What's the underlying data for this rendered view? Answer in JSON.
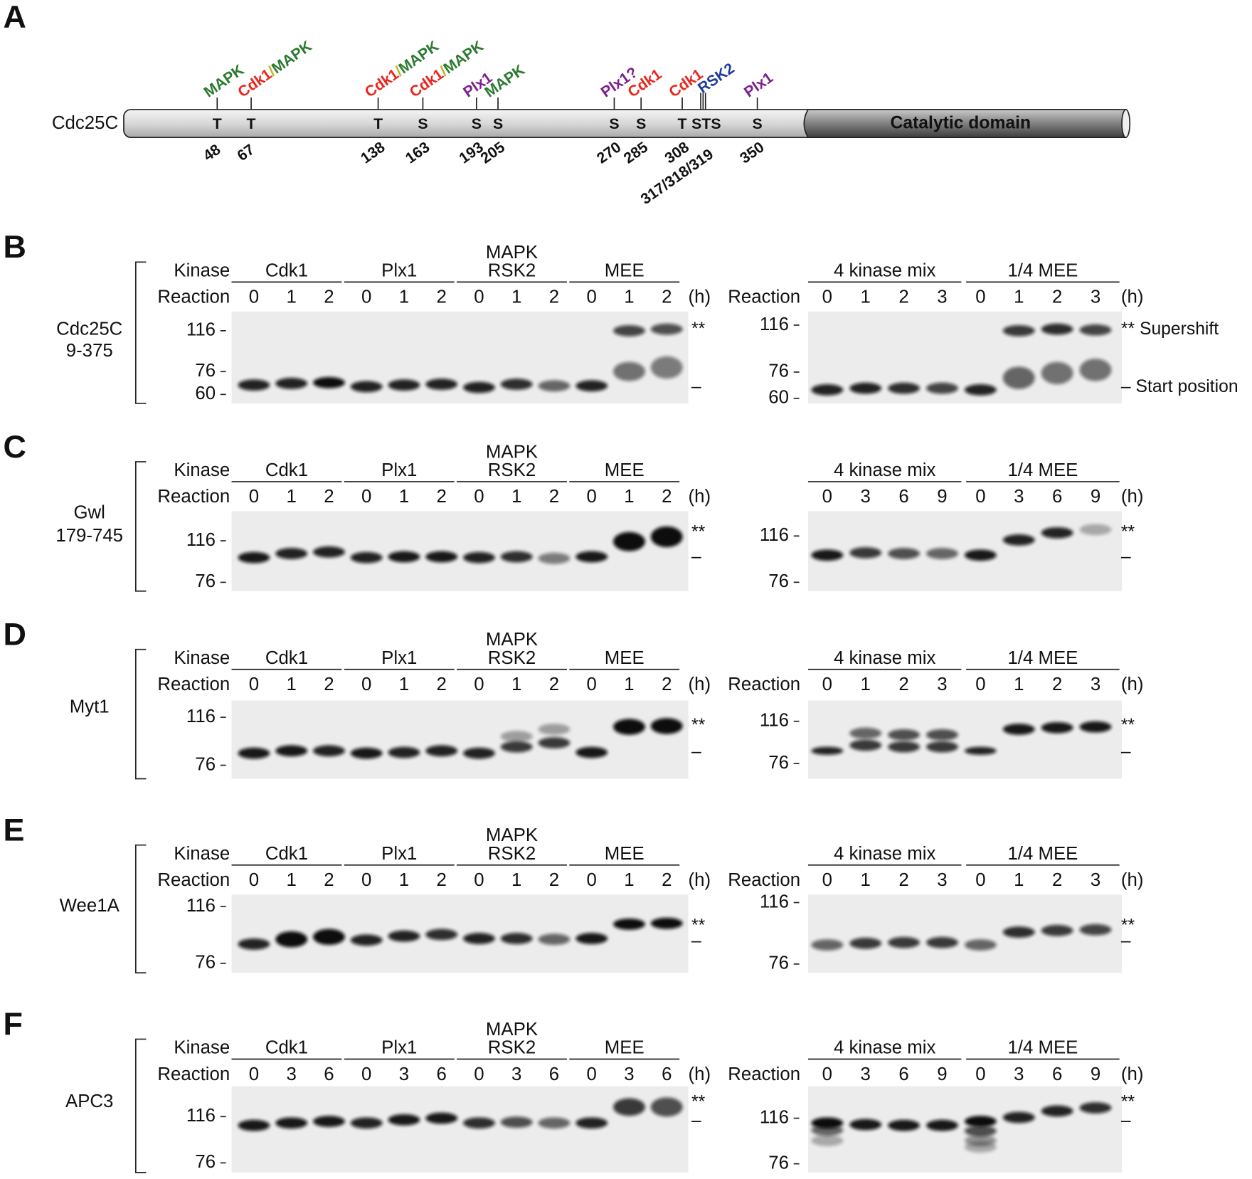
{
  "panel_a": {
    "label": "A",
    "protein": "Cdc25C",
    "domain": "Catalytic domain",
    "sites": [
      {
        "residue": "T",
        "number": 48,
        "color": "#2b7a2f",
        "kinase": [
          {
            "text": "MAPK",
            "color": "#2b7a2f"
          }
        ]
      },
      {
        "residue": "T",
        "number": 67,
        "color": "#b8b823",
        "kinase": [
          {
            "text": "Cdk1",
            "color": "#e8261c"
          },
          {
            "text": "/",
            "color": "#b8b823"
          },
          {
            "text": "MAPK",
            "color": "#2b7a2f"
          }
        ]
      },
      {
        "residue": "T",
        "number": 138,
        "color": "#b8b823",
        "kinase": [
          {
            "text": "Cdk1",
            "color": "#e8261c"
          },
          {
            "text": "/",
            "color": "#b8b823"
          },
          {
            "text": "MAPK",
            "color": "#2b7a2f"
          }
        ]
      },
      {
        "residue": "S",
        "number": 163,
        "color": "#b8b823",
        "kinase": [
          {
            "text": "Cdk1",
            "color": "#e8261c"
          },
          {
            "text": "/",
            "color": "#b8b823"
          },
          {
            "text": "MAPK",
            "color": "#2b7a2f"
          }
        ]
      },
      {
        "residue": "S",
        "number": 193,
        "color": "#7b1f8c",
        "kinase": [
          {
            "text": "Plx1",
            "color": "#7b1f8c"
          }
        ]
      },
      {
        "residue": "S",
        "number": 205,
        "color": "#2b7a2f",
        "kinase": [
          {
            "text": "MAPK",
            "color": "#2b7a2f"
          }
        ]
      },
      {
        "residue": "S",
        "number": 270,
        "color": "#7b1f8c",
        "kinase": [
          {
            "text": "Plx1?",
            "color": "#7b1f8c"
          }
        ]
      },
      {
        "residue": "S",
        "number": 285,
        "color": "#e8261c",
        "kinase": [
          {
            "text": "Cdk1",
            "color": "#e8261c"
          }
        ]
      },
      {
        "residue": "T",
        "number": 308,
        "color": "#e8261c",
        "kinase": [
          {
            "text": "Cdk1",
            "color": "#e8261c"
          }
        ]
      },
      {
        "residue": "STS",
        "number": {
          "value": 317,
          "label": "317/318/319"
        },
        "color": "#1f3c9a",
        "kinase": [
          {
            "text": "RSK2",
            "color": "#1f3c9a"
          }
        ]
      },
      {
        "residue": "S",
        "number": 350,
        "color": "#7b1f8c",
        "kinase": [
          {
            "text": "Plx1",
            "color": "#7b1f8c"
          }
        ]
      }
    ]
  },
  "blots": [
    {
      "label": "B",
      "protein": [
        "Cdc25C",
        "9-375"
      ],
      "left": {
        "kinase_label": "Kinase",
        "reaction_label": "Reaction",
        "unit": "(h)",
        "markers": [
          116,
          76,
          60
        ],
        "upper_mark": "**",
        "lower_mark": "–",
        "groups": [
          {
            "name": [
              "Cdk1"
            ],
            "times": [
              0,
              1,
              2
            ]
          },
          {
            "name": [
              "Plx1"
            ],
            "times": [
              0,
              1,
              2
            ]
          },
          {
            "name": [
              "MAPK",
              "RSK2"
            ],
            "times": [
              0,
              1,
              2
            ]
          },
          {
            "name": [
              "MEE"
            ],
            "times": [
              0,
              1,
              2
            ]
          }
        ]
      },
      "right": {
        "reaction_label": "Reaction",
        "unit": "(h)",
        "markers": [
          116,
          76,
          60
        ],
        "upper_mark": "** Supershift",
        "lower_mark": "– Start position",
        "groups": [
          {
            "name": [
              "4 kinase mix"
            ],
            "times": [
              0,
              1,
              2,
              3
            ]
          },
          {
            "name": [
              "1/4 MEE"
            ],
            "times": [
              0,
              1,
              2,
              3
            ]
          }
        ]
      }
    },
    {
      "label": "C",
      "protein": [
        "Gwl",
        "179-745"
      ],
      "left": {
        "kinase_label": "Kinase",
        "reaction_label": "Reaction",
        "unit": "(h)",
        "markers": [
          116,
          76
        ],
        "upper_mark": "**",
        "lower_mark": "–",
        "groups": [
          {
            "name": [
              "Cdk1"
            ],
            "times": [
              0,
              1,
              2
            ]
          },
          {
            "name": [
              "Plx1"
            ],
            "times": [
              0,
              1,
              2
            ]
          },
          {
            "name": [
              "MAPK",
              "RSK2"
            ],
            "times": [
              0,
              1,
              2
            ]
          },
          {
            "name": [
              "MEE"
            ],
            "times": [
              0,
              1,
              2
            ]
          }
        ]
      },
      "right": {
        "unit": "(h)",
        "markers": [
          116,
          76
        ],
        "upper_mark": "**",
        "lower_mark": "–",
        "groups": [
          {
            "name": [
              "4 kinase mix"
            ],
            "times": [
              0,
              3,
              6,
              9
            ]
          },
          {
            "name": [
              "1/4 MEE"
            ],
            "times": [
              0,
              3,
              6,
              9
            ]
          }
        ]
      }
    },
    {
      "label": "D",
      "protein": [
        "Myt1"
      ],
      "left": {
        "kinase_label": "Kinase",
        "reaction_label": "Reaction",
        "unit": "(h)",
        "markers": [
          116,
          76
        ],
        "upper_mark": "**",
        "lower_mark": "–",
        "groups": [
          {
            "name": [
              "Cdk1"
            ],
            "times": [
              0,
              1,
              2
            ]
          },
          {
            "name": [
              "Plx1"
            ],
            "times": [
              0,
              1,
              2
            ]
          },
          {
            "name": [
              "MAPK",
              "RSK2"
            ],
            "times": [
              0,
              1,
              2
            ]
          },
          {
            "name": [
              "MEE"
            ],
            "times": [
              0,
              1,
              2
            ]
          }
        ]
      },
      "right": {
        "reaction_label": "Reaction",
        "unit": "(h)",
        "markers": [
          116,
          76
        ],
        "upper_mark": "**",
        "lower_mark": "–",
        "groups": [
          {
            "name": [
              "4 kinase mix"
            ],
            "times": [
              0,
              1,
              2,
              3
            ]
          },
          {
            "name": [
              "1/4 MEE"
            ],
            "times": [
              0,
              1,
              2,
              3
            ]
          }
        ]
      }
    },
    {
      "label": "E",
      "protein": [
        "Wee1A"
      ],
      "left": {
        "kinase_label": "Kinase",
        "reaction_label": "Reaction",
        "unit": "(h)",
        "markers": [
          116,
          76
        ],
        "upper_mark": "**",
        "lower_mark": "–",
        "groups": [
          {
            "name": [
              "Cdk1"
            ],
            "times": [
              0,
              1,
              2
            ]
          },
          {
            "name": [
              "Plx1"
            ],
            "times": [
              0,
              1,
              2
            ]
          },
          {
            "name": [
              "MAPK",
              "RSK2"
            ],
            "times": [
              0,
              1,
              2
            ]
          },
          {
            "name": [
              "MEE"
            ],
            "times": [
              0,
              1,
              2
            ]
          }
        ]
      },
      "right": {
        "reaction_label": "Reaction",
        "unit": "(h)",
        "markers": [
          116,
          76
        ],
        "upper_mark": "**",
        "lower_mark": "–",
        "groups": [
          {
            "name": [
              "4 kinase mix"
            ],
            "times": [
              0,
              1,
              2,
              3
            ]
          },
          {
            "name": [
              "1/4 MEE"
            ],
            "times": [
              0,
              1,
              2,
              3
            ]
          }
        ]
      }
    },
    {
      "label": "F",
      "protein": [
        "APC3"
      ],
      "left": {
        "kinase_label": "Kinase",
        "reaction_label": "Reaction",
        "unit": "(h)",
        "markers": [
          116,
          76
        ],
        "upper_mark": "**",
        "lower_mark": "–",
        "groups": [
          {
            "name": [
              "Cdk1"
            ],
            "times": [
              0,
              3,
              6
            ]
          },
          {
            "name": [
              "Plx1"
            ],
            "times": [
              0,
              3,
              6
            ]
          },
          {
            "name": [
              "MAPK",
              "RSK2"
            ],
            "times": [
              0,
              3,
              6
            ]
          },
          {
            "name": [
              "MEE"
            ],
            "times": [
              0,
              3,
              6
            ]
          }
        ]
      },
      "right": {
        "reaction_label": "Reaction",
        "unit": "(h)",
        "markers": [
          116,
          76
        ],
        "upper_mark": "**",
        "lower_mark": "–",
        "groups": [
          {
            "name": [
              "4 kinase mix"
            ],
            "times": [
              0,
              3,
              6,
              9
            ]
          },
          {
            "name": [
              "1/4 MEE"
            ],
            "times": [
              0,
              3,
              6,
              9
            ]
          }
        ]
      }
    }
  ]
}
